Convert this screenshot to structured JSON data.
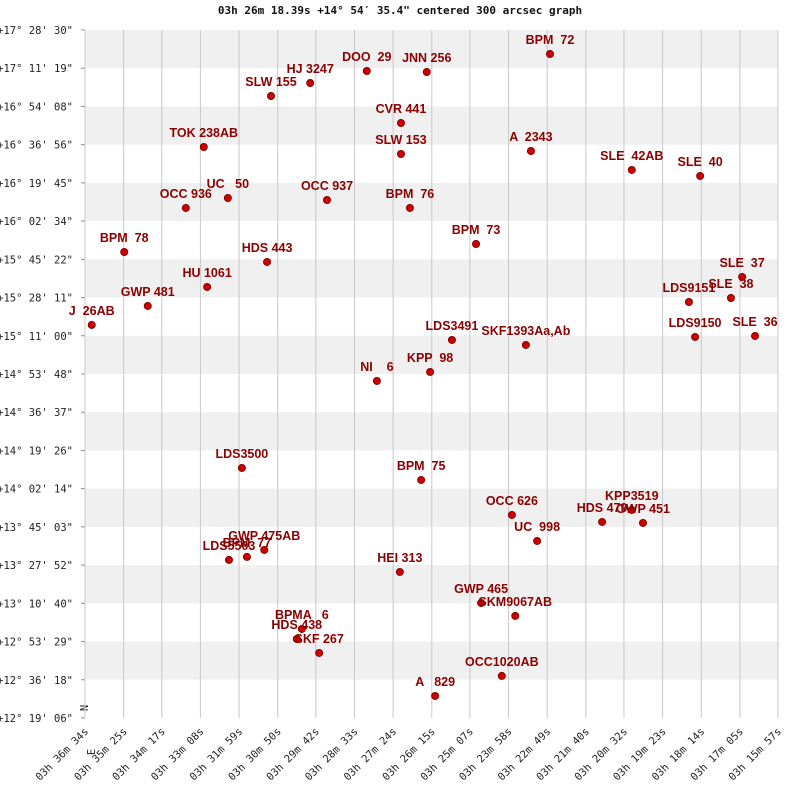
{
  "chart_data": {
    "type": "scatter",
    "title": "03h 26m 18.39s +14° 54′ 35.4\" centered 300 arcsec graph",
    "annotations": [
      "N",
      "E"
    ],
    "color": "#cc0000",
    "label_color": "#8b0000",
    "grid": true,
    "xlim": [
      12994,
      11757
    ],
    "ylim": [
      44346,
      62910
    ],
    "xticks": [
      {
        "value": 12994,
        "label": "03h 36m 34s"
      },
      {
        "value": 12925,
        "label": "03h 35m 25s"
      },
      {
        "value": 12857,
        "label": "03h 34m 17s"
      },
      {
        "value": 12788,
        "label": "03h 33m 08s"
      },
      {
        "value": 12719,
        "label": "03h 31m 59s"
      },
      {
        "value": 12650,
        "label": "03h 30m 50s"
      },
      {
        "value": 12582,
        "label": "03h 29m 42s"
      },
      {
        "value": 12513,
        "label": "03h 28m 33s"
      },
      {
        "value": 12444,
        "label": "03h 27m 24s"
      },
      {
        "value": 12375,
        "label": "03h 26m 15s"
      },
      {
        "value": 12307,
        "label": "03h 25m 07s"
      },
      {
        "value": 12238,
        "label": "03h 23m 58s"
      },
      {
        "value": 12169,
        "label": "03h 22m 49s"
      },
      {
        "value": 12100,
        "label": "03h 21m 40s"
      },
      {
        "value": 12032,
        "label": "03h 20m 32s"
      },
      {
        "value": 11963,
        "label": "03h 19m 23s"
      },
      {
        "value": 11894,
        "label": "03h 18m 14s"
      },
      {
        "value": 11825,
        "label": "03h 17m 05s"
      },
      {
        "value": 11757,
        "label": "03h 15m 57s"
      }
    ],
    "yticks": [
      {
        "value": 62910,
        "label": "+17° 28' 30\""
      },
      {
        "value": 61879,
        "label": "+17° 11' 19\""
      },
      {
        "value": 60848,
        "label": "+16° 54' 08\""
      },
      {
        "value": 59816,
        "label": "+16° 36' 56\""
      },
      {
        "value": 58785,
        "label": "+16° 19' 45\""
      },
      {
        "value": 57754,
        "label": "+16° 02' 34\""
      },
      {
        "value": 56722,
        "label": "+15° 45' 22\""
      },
      {
        "value": 55691,
        "label": "+15° 28' 11\""
      },
      {
        "value": 54660,
        "label": "+15° 11' 00\""
      },
      {
        "value": 53628,
        "label": "+14° 53' 48\""
      },
      {
        "value": 52597,
        "label": "+14° 36' 37\""
      },
      {
        "value": 51566,
        "label": "+14° 19' 26\""
      },
      {
        "value": 50534,
        "label": "+14° 02' 14\""
      },
      {
        "value": 49503,
        "label": "+13° 45' 03\""
      },
      {
        "value": 48472,
        "label": "+13° 27' 52\""
      },
      {
        "value": 47440,
        "label": "+13° 10' 40\""
      },
      {
        "value": 46409,
        "label": "+12° 53' 29\""
      },
      {
        "value": 45378,
        "label": "+12° 36' 18\""
      },
      {
        "value": 44346,
        "label": "+12° 19' 06\""
      }
    ],
    "labels": [
      "BPM  72",
      "DOO  29",
      "JNN 256",
      "HJ 3247",
      "SLW 155",
      "CVR 441",
      "TOK 238AB",
      "SLW 153",
      "A  2343",
      "SLE  42AB",
      "SLE  40",
      "UC   50",
      "OCC 936",
      "OCC 937",
      "BPM  76",
      "BPM  73",
      "BPM  78",
      "HDS 443",
      "SLE  37",
      "HU 1061",
      "SLE  38",
      "LDS9151",
      "GWP 481",
      "J  26AB",
      "LDS3491",
      "SKF1393Aa,Ab",
      "LDS9150",
      "SLE  36",
      "NI    6",
      "KPP  98",
      "LDS3500",
      "BPM  75",
      "OCC 626",
      "KPP3519",
      "HDS 479",
      "GWP 451",
      "UC  998",
      "GWP 475AB",
      "LDS5503",
      "BPM  77",
      "HEI 313",
      "GWP 465",
      "SKM9067AB",
      "BPMA   6",
      "HDS 438",
      "SKF 267",
      "OCC1020AB",
      "A   829"
    ],
    "x": [
      12164,
      12491,
      12384,
      12592,
      12662,
      12430,
      12782,
      12430,
      12198,
      12018,
      11896,
      12739,
      12814,
      12562,
      12414,
      12296,
      12924,
      12669,
      11821,
      12776,
      11841,
      11916,
      12882,
      12982,
      12339,
      12207,
      11905,
      11798,
      12473,
      12378,
      12714,
      12394,
      12232,
      12018,
      12071,
      11998,
      12187,
      12674,
      12737,
      12705,
      12432,
      12287,
      12226,
      12607,
      12616,
      12576,
      12250,
      12369
    ],
    "y": [
      62262,
      61804,
      61777,
      61480,
      61129,
      60401,
      59753,
      59564,
      59645,
      59133,
      58971,
      58377,
      58108,
      58323,
      58108,
      57136,
      56920,
      56651,
      56246,
      55976,
      55679,
      55571,
      55464,
      54951,
      54546,
      54411,
      54627,
      54654,
      53440,
      53683,
      51093,
      50769,
      49825,
      49960,
      49636,
      49609,
      49123,
      48880,
      48611,
      48692,
      48287,
      47450,
      47100,
      46749,
      46479,
      46101,
      45481,
      44941
    ]
  }
}
